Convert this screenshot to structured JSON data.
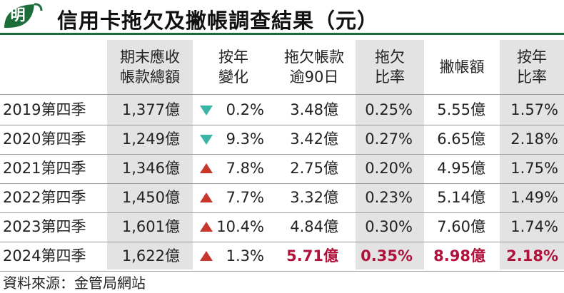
{
  "header": {
    "logo_char": "明",
    "title": "信用卡拖欠及撇帳調查結果（元）"
  },
  "columns": {
    "receivables": [
      "期末應收",
      "帳款總額"
    ],
    "yoy_change": [
      "按年",
      "變化"
    ],
    "overdue": [
      "拖欠帳款",
      "逾90日"
    ],
    "overdue_ratio": [
      "拖欠",
      "比率"
    ],
    "writeoff": [
      "撇帳額"
    ],
    "writeoff_yoy": [
      "按年",
      "比率"
    ]
  },
  "rows": [
    {
      "period": "2019第四季",
      "receivables": "1,377億",
      "change": "0.2%",
      "direction": "down",
      "overdue": "3.48億",
      "overdue_ratio": "0.25%",
      "writeoff": "5.55億",
      "writeoff_ratio": "1.57%"
    },
    {
      "period": "2020第四季",
      "receivables": "1,249億",
      "change": "9.3%",
      "direction": "down",
      "overdue": "3.42億",
      "overdue_ratio": "0.27%",
      "writeoff": "6.65億",
      "writeoff_ratio": "2.18%"
    },
    {
      "period": "2021第四季",
      "receivables": "1,346億",
      "change": "7.8%",
      "direction": "up",
      "overdue": "2.75億",
      "overdue_ratio": "0.20%",
      "writeoff": "4.95億",
      "writeoff_ratio": "1.75%"
    },
    {
      "period": "2022第四季",
      "receivables": "1,450億",
      "change": "7.7%",
      "direction": "up",
      "overdue": "3.32億",
      "overdue_ratio": "0.23%",
      "writeoff": "5.14億",
      "writeoff_ratio": "1.49%"
    },
    {
      "period": "2023第四季",
      "receivables": "1,601億",
      "change": "10.4%",
      "direction": "up",
      "overdue": "4.84億",
      "overdue_ratio": "0.30%",
      "writeoff": "7.60億",
      "writeoff_ratio": "1.74%"
    },
    {
      "period": "2024第四季",
      "receivables": "1,622億",
      "change": "1.3%",
      "direction": "up",
      "overdue": "5.71億",
      "overdue_ratio": "0.35%",
      "writeoff": "8.98億",
      "writeoff_ratio": "2.18%"
    }
  ],
  "source": "資料來源：金管局網站",
  "colors": {
    "brand_green": "#1c6d3a",
    "down_arrow": "#3bb6a6",
    "up_arrow": "#c8372d",
    "highlight": "#b0123c",
    "shade": "#e3e3e3"
  }
}
